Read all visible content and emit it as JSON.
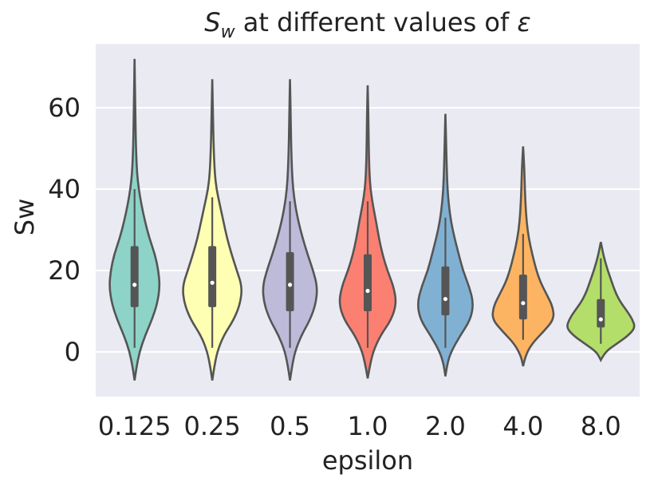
{
  "chart_data": {
    "type": "violin",
    "title_parts": {
      "symbol": "S",
      "subscript": "w",
      "middle": " at different values of ",
      "greek": "ε"
    },
    "xlabel": "epsilon",
    "ylabel": "Sw",
    "ylim": [
      -11,
      76
    ],
    "yticks": [
      0,
      20,
      40,
      60
    ],
    "grid": true,
    "categories": [
      "0.125",
      "0.25",
      "0.5",
      "1.0",
      "2.0",
      "4.0",
      "8.0"
    ],
    "colors": [
      "#8dd3c7",
      "#ffffb3",
      "#bebada",
      "#fb8072",
      "#80b1d3",
      "#fdb462",
      "#b3de69"
    ],
    "series": [
      {
        "name": "0.125",
        "min": -7,
        "max": 72,
        "q1": 11,
        "median": 16.5,
        "q3": 26,
        "whisker_low": 1,
        "whisker_high": 40,
        "density": [
          [
            -7,
            0.0
          ],
          [
            -4,
            0.05
          ],
          [
            0,
            0.14
          ],
          [
            4,
            0.3
          ],
          [
            8,
            0.5
          ],
          [
            12,
            0.65
          ],
          [
            16,
            0.72
          ],
          [
            20,
            0.68
          ],
          [
            24,
            0.58
          ],
          [
            28,
            0.42
          ],
          [
            32,
            0.3
          ],
          [
            36,
            0.2
          ],
          [
            40,
            0.12
          ],
          [
            44,
            0.07
          ],
          [
            48,
            0.05
          ],
          [
            52,
            0.035
          ],
          [
            60,
            0.02
          ],
          [
            72,
            0.0
          ]
        ]
      },
      {
        "name": "0.25",
        "min": -7,
        "max": 67,
        "q1": 11,
        "median": 17,
        "q3": 26,
        "whisker_low": 1,
        "whisker_high": 38,
        "density": [
          [
            -7,
            0.0
          ],
          [
            -4,
            0.05
          ],
          [
            0,
            0.14
          ],
          [
            4,
            0.32
          ],
          [
            8,
            0.62
          ],
          [
            12,
            0.8
          ],
          [
            16,
            0.85
          ],
          [
            20,
            0.7
          ],
          [
            24,
            0.55
          ],
          [
            28,
            0.42
          ],
          [
            32,
            0.32
          ],
          [
            36,
            0.22
          ],
          [
            40,
            0.12
          ],
          [
            44,
            0.07
          ],
          [
            50,
            0.04
          ],
          [
            58,
            0.02
          ],
          [
            67,
            0.0
          ]
        ]
      },
      {
        "name": "0.5",
        "min": -7,
        "max": 67,
        "q1": 10,
        "median": 16.5,
        "q3": 24.5,
        "whisker_low": 1,
        "whisker_high": 37,
        "density": [
          [
            -7,
            0.0
          ],
          [
            -4,
            0.05
          ],
          [
            0,
            0.14
          ],
          [
            4,
            0.32
          ],
          [
            8,
            0.58
          ],
          [
            12,
            0.74
          ],
          [
            16,
            0.78
          ],
          [
            20,
            0.66
          ],
          [
            24,
            0.5
          ],
          [
            28,
            0.36
          ],
          [
            32,
            0.24
          ],
          [
            36,
            0.15
          ],
          [
            40,
            0.09
          ],
          [
            44,
            0.06
          ],
          [
            50,
            0.035
          ],
          [
            58,
            0.02
          ],
          [
            67,
            0.0
          ]
        ]
      },
      {
        "name": "1.0",
        "min": -6.5,
        "max": 65.5,
        "q1": 10,
        "median": 15,
        "q3": 24,
        "whisker_low": 1,
        "whisker_high": 37,
        "density": [
          [
            -6.5,
            0.0
          ],
          [
            -4,
            0.05
          ],
          [
            0,
            0.15
          ],
          [
            4,
            0.36
          ],
          [
            8,
            0.68
          ],
          [
            12,
            0.82
          ],
          [
            16,
            0.74
          ],
          [
            20,
            0.56
          ],
          [
            24,
            0.42
          ],
          [
            28,
            0.32
          ],
          [
            32,
            0.24
          ],
          [
            36,
            0.15
          ],
          [
            40,
            0.08
          ],
          [
            44,
            0.05
          ],
          [
            50,
            0.03
          ],
          [
            58,
            0.02
          ],
          [
            65.5,
            0.0
          ]
        ]
      },
      {
        "name": "2.0",
        "min": -6,
        "max": 58.5,
        "q1": 9,
        "median": 13,
        "q3": 21,
        "whisker_low": 1,
        "whisker_high": 33,
        "density": [
          [
            -6,
            0.0
          ],
          [
            -3,
            0.05
          ],
          [
            0,
            0.16
          ],
          [
            4,
            0.42
          ],
          [
            8,
            0.72
          ],
          [
            12,
            0.8
          ],
          [
            16,
            0.68
          ],
          [
            20,
            0.5
          ],
          [
            24,
            0.38
          ],
          [
            28,
            0.26
          ],
          [
            32,
            0.16
          ],
          [
            36,
            0.1
          ],
          [
            40,
            0.06
          ],
          [
            46,
            0.035
          ],
          [
            52,
            0.02
          ],
          [
            58.5,
            0.0
          ]
        ]
      },
      {
        "name": "4.0",
        "min": -3.5,
        "max": 50.5,
        "q1": 8,
        "median": 12,
        "q3": 19,
        "whisker_low": 3,
        "whisker_high": 29,
        "density": [
          [
            -3.5,
            0.0
          ],
          [
            -1,
            0.06
          ],
          [
            2,
            0.25
          ],
          [
            5,
            0.58
          ],
          [
            8,
            0.88
          ],
          [
            11,
            0.85
          ],
          [
            14,
            0.68
          ],
          [
            17,
            0.5
          ],
          [
            20,
            0.38
          ],
          [
            24,
            0.26
          ],
          [
            28,
            0.16
          ],
          [
            32,
            0.1
          ],
          [
            36,
            0.07
          ],
          [
            40,
            0.05
          ],
          [
            45,
            0.035
          ],
          [
            50.5,
            0.0
          ]
        ]
      },
      {
        "name": "8.0",
        "min": -2,
        "max": 27,
        "q1": 6,
        "median": 8,
        "q3": 13,
        "whisker_low": 2,
        "whisker_high": 23,
        "density": [
          [
            -2,
            0.0
          ],
          [
            0,
            0.12
          ],
          [
            2,
            0.45
          ],
          [
            4,
            0.78
          ],
          [
            6,
            0.98
          ],
          [
            8,
            0.9
          ],
          [
            10,
            0.75
          ],
          [
            12,
            0.58
          ],
          [
            14,
            0.45
          ],
          [
            16,
            0.36
          ],
          [
            18,
            0.28
          ],
          [
            20,
            0.2
          ],
          [
            22,
            0.13
          ],
          [
            24,
            0.07
          ],
          [
            27,
            0.0
          ]
        ]
      }
    ]
  }
}
